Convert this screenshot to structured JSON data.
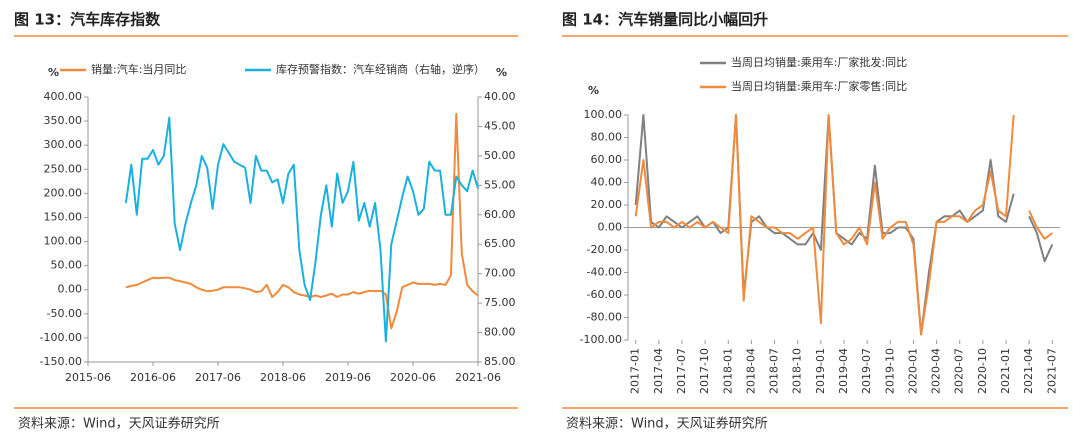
{
  "chart_data": [
    {
      "type": "line",
      "title": "图 13：汽车库存指数",
      "source": "资料来源：Wind，天风证券研究所",
      "y_label": "%",
      "y2_label": "%",
      "y2_reversed": true,
      "x": [
        "2016-01",
        "2016-02",
        "2016-03",
        "2016-04",
        "2016-05",
        "2016-06",
        "2016-07",
        "2016-08",
        "2016-09",
        "2016-10",
        "2016-11",
        "2016-12",
        "2017-01",
        "2017-02",
        "2017-03",
        "2017-04",
        "2017-05",
        "2017-06",
        "2017-07",
        "2017-08",
        "2017-09",
        "2017-10",
        "2017-11",
        "2017-12",
        "2018-01",
        "2018-02",
        "2018-03",
        "2018-04",
        "2018-05",
        "2018-06",
        "2018-07",
        "2018-08",
        "2018-09",
        "2018-10",
        "2018-11",
        "2018-12",
        "2019-01",
        "2019-02",
        "2019-03",
        "2019-04",
        "2019-05",
        "2019-06",
        "2019-07",
        "2019-08",
        "2019-09",
        "2019-10",
        "2019-11",
        "2019-12",
        "2020-01",
        "2020-02",
        "2020-03",
        "2020-04",
        "2020-05",
        "2020-06",
        "2020-07",
        "2020-08",
        "2020-09",
        "2020-10",
        "2020-11",
        "2020-12",
        "2021-01",
        "2021-02",
        "2021-03",
        "2021-04",
        "2021-05",
        "2021-06"
      ],
      "xlim": [
        "2015-06",
        "2021-06"
      ],
      "xticks": [
        "2015-06",
        "2016-06",
        "2017-06",
        "2018-06",
        "2019-06",
        "2020-06",
        "2021-06"
      ],
      "ylim": [
        -150,
        400
      ],
      "yticks": [
        {
          "value": -150,
          "label": "-150.00"
        },
        {
          "value": -100,
          "label": "-100.00"
        },
        {
          "value": -50,
          "label": "-50.00"
        },
        {
          "value": 0,
          "label": "0.00"
        },
        {
          "value": 50,
          "label": "50.00"
        },
        {
          "value": 100,
          "label": "100.00"
        },
        {
          "value": 150,
          "label": "150.00"
        },
        {
          "value": 200,
          "label": "200.00"
        },
        {
          "value": 250,
          "label": "250.00"
        },
        {
          "value": 300,
          "label": "300.00"
        },
        {
          "value": 350,
          "label": "350.00"
        },
        {
          "value": 400,
          "label": "400.00"
        }
      ],
      "y2lim": [
        40,
        85
      ],
      "y2ticks": [
        {
          "value": 40,
          "label": "40.00"
        },
        {
          "value": 45,
          "label": "45.00"
        },
        {
          "value": 50,
          "label": "50.00"
        },
        {
          "value": 55,
          "label": "55.00"
        },
        {
          "value": 60,
          "label": "60.00"
        },
        {
          "value": 65,
          "label": "65.00"
        },
        {
          "value": 70,
          "label": "70.00"
        },
        {
          "value": 75,
          "label": "75.00"
        },
        {
          "value": 80,
          "label": "80.00"
        },
        {
          "value": 85,
          "label": "85.00"
        }
      ],
      "series": [
        {
          "name": "销量:汽车:当月同比",
          "color": "#f08a3c",
          "values": [
            5,
            8,
            10,
            15,
            20,
            25,
            24,
            25,
            25,
            20,
            18,
            15,
            12,
            5,
            0,
            -3,
            -2,
            0,
            5,
            5,
            5,
            5,
            3,
            0,
            -5,
            -3,
            10,
            -15,
            -5,
            10,
            5,
            -5,
            -10,
            -12,
            -15,
            -12,
            -15,
            -12,
            -8,
            -15,
            -10,
            -10,
            -5,
            -8,
            -5,
            -2,
            -3,
            -2,
            -10,
            -80,
            -45,
            5,
            10,
            15,
            12,
            12,
            12,
            10,
            12,
            10,
            30,
            365,
            75,
            10,
            -3,
            -12
          ]
        },
        {
          "name": "库存预警指数：汽车经销商（右轴，逆序）",
          "color": "#1ab0e0",
          "axis": "y2",
          "values": [
            58,
            51.5,
            60,
            50.5,
            50.5,
            49,
            51.5,
            50,
            43.5,
            61.5,
            66,
            61.5,
            58,
            55,
            50,
            52,
            59,
            51.5,
            48,
            49.5,
            51,
            51.5,
            52,
            58,
            50,
            52.5,
            52.5,
            54.5,
            54,
            58,
            53,
            51.5,
            66,
            72,
            74.5,
            68,
            60,
            55,
            62,
            53,
            58,
            56,
            51,
            61,
            58,
            62,
            58,
            66,
            81.5,
            65,
            61,
            57,
            53.5,
            56,
            60,
            59,
            51,
            52.5,
            52.5,
            60,
            60,
            53.5,
            55,
            56,
            52.5,
            55.5
          ]
        }
      ]
    },
    {
      "type": "line",
      "title": "图 14：汽车销量同比小幅回升",
      "source": "资料来源：Wind，天风证券研究所",
      "y_label": "%",
      "x": [
        "2017-01",
        "2017-02",
        "2017-03",
        "2017-04",
        "2017-05",
        "2017-06",
        "2017-07",
        "2017-08",
        "2017-09",
        "2017-10",
        "2017-11",
        "2017-12",
        "2018-01",
        "2018-02",
        "2018-03",
        "2018-04",
        "2018-05",
        "2018-06",
        "2018-07",
        "2018-08",
        "2018-09",
        "2018-10",
        "2018-11",
        "2018-12",
        "2019-01",
        "2019-02",
        "2019-03",
        "2019-04",
        "2019-05",
        "2019-06",
        "2019-07",
        "2019-08",
        "2019-09",
        "2019-10",
        "2019-11",
        "2019-12",
        "2020-01",
        "2020-02",
        "2020-03",
        "2020-04",
        "2020-05",
        "2020-06",
        "2020-07",
        "2020-08",
        "2020-09",
        "2020-10",
        "2020-11",
        "2020-12",
        "2021-01",
        "2021-02",
        "2021-03",
        "2021-04",
        "2021-05",
        "2021-06",
        "2021-07"
      ],
      "xlim": [
        "2016-12",
        "2021-08"
      ],
      "xticks": [
        "2017-01",
        "2017-04",
        "2017-07",
        "2017-10",
        "2018-01",
        "2018-04",
        "2018-07",
        "2018-10",
        "2019-01",
        "2019-04",
        "2019-07",
        "2019-10",
        "2020-01",
        "2020-04",
        "2020-07",
        "2020-10",
        "2021-01",
        "2021-04",
        "2021-07"
      ],
      "ylim": [
        -100,
        100
      ],
      "yticks": [
        {
          "value": -100,
          "label": "-100.00"
        },
        {
          "value": -80,
          "label": "-80.00"
        },
        {
          "value": -60,
          "label": "-60.00"
        },
        {
          "value": -40,
          "label": "-40.00"
        },
        {
          "value": -20,
          "label": "-20.00"
        },
        {
          "value": 0,
          "label": "0.00"
        },
        {
          "value": 20,
          "label": "20.00"
        },
        {
          "value": 40,
          "label": "40.00"
        },
        {
          "value": 60,
          "label": "60.00"
        },
        {
          "value": 80,
          "label": "80.00"
        },
        {
          "value": 100,
          "label": "100.00"
        }
      ],
      "series": [
        {
          "name": "当周日均销量:乘用车:厂家批发:同比",
          "color": "#808080",
          "values": [
            20,
            100,
            5,
            0,
            10,
            5,
            0,
            5,
            10,
            0,
            5,
            -5,
            0,
            100,
            -60,
            5,
            10,
            0,
            -5,
            -5,
            -10,
            -15,
            -15,
            -5,
            -20,
            100,
            -5,
            -10,
            -15,
            -5,
            -10,
            55,
            -5,
            -5,
            0,
            0,
            -10,
            -95,
            -40,
            5,
            10,
            10,
            15,
            5,
            10,
            15,
            60,
            10,
            5,
            30,
            null,
            10,
            -5,
            -30,
            -15
          ]
        },
        {
          "name": "当周日均销量:乘用车:厂家零售:同比",
          "color": "#f08a3c",
          "values": [
            10,
            60,
            0,
            5,
            5,
            0,
            5,
            0,
            5,
            0,
            5,
            0,
            -5,
            100,
            -65,
            10,
            5,
            0,
            0,
            -5,
            -5,
            -10,
            -5,
            0,
            -85,
            100,
            -5,
            -15,
            -10,
            0,
            -15,
            40,
            -10,
            0,
            5,
            5,
            -15,
            -95,
            -50,
            5,
            5,
            10,
            10,
            5,
            15,
            20,
            50,
            15,
            10,
            100,
            null,
            15,
            0,
            -10,
            -5
          ]
        }
      ]
    }
  ]
}
